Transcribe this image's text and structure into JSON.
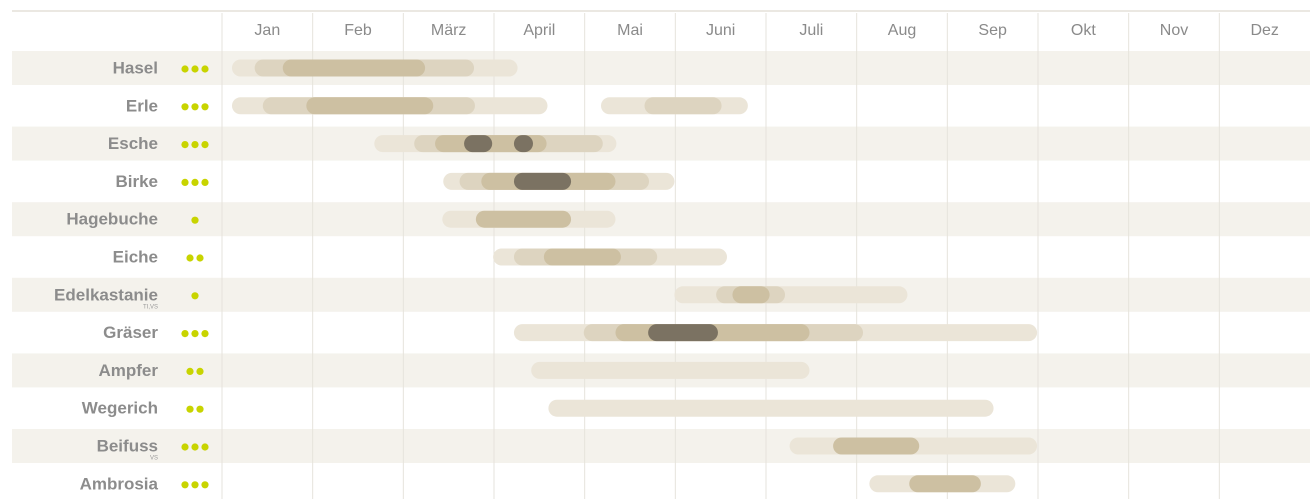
{
  "chart_data": {
    "type": "gantt",
    "categories": [
      "Jan",
      "Feb",
      "März",
      "April",
      "Mai",
      "Juni",
      "Juli",
      "Aug",
      "Sep",
      "Okt",
      "Nov",
      "Dez"
    ],
    "xlim": [
      0,
      12
    ],
    "level_colors": [
      "#ebe5d8",
      "#ddd4c0",
      "#cdc0a2",
      "#7b7262"
    ],
    "dot_color": "#c8d400",
    "series": [
      {
        "name": "Hasel",
        "dots": 3,
        "segments": [
          {
            "start": 0.11,
            "end": 3.26,
            "level": 0
          },
          {
            "start": 0.36,
            "end": 2.78,
            "level": 1
          },
          {
            "start": 0.67,
            "end": 2.24,
            "level": 2
          }
        ]
      },
      {
        "name": "Erle",
        "dots": 3,
        "segments": [
          {
            "start": 0.11,
            "end": 3.59,
            "level": 0
          },
          {
            "start": 0.45,
            "end": 2.79,
            "level": 1
          },
          {
            "start": 0.93,
            "end": 2.33,
            "level": 2
          },
          {
            "start": 4.18,
            "end": 5.8,
            "level": 0
          },
          {
            "start": 4.66,
            "end": 5.51,
            "level": 1
          }
        ]
      },
      {
        "name": "Esche",
        "dots": 3,
        "segments": [
          {
            "start": 1.68,
            "end": 4.35,
            "level": 0
          },
          {
            "start": 2.12,
            "end": 4.2,
            "level": 1
          },
          {
            "start": 2.35,
            "end": 3.58,
            "level": 2
          },
          {
            "start": 2.67,
            "end": 2.98,
            "level": 3
          },
          {
            "start": 3.22,
            "end": 3.43,
            "level": 3
          }
        ]
      },
      {
        "name": "Birke",
        "dots": 3,
        "segments": [
          {
            "start": 2.44,
            "end": 4.99,
            "level": 0
          },
          {
            "start": 2.62,
            "end": 4.71,
            "level": 1
          },
          {
            "start": 2.86,
            "end": 4.34,
            "level": 2
          },
          {
            "start": 3.22,
            "end": 3.85,
            "level": 3
          }
        ]
      },
      {
        "name": "Hagebuche",
        "dots": 1,
        "segments": [
          {
            "start": 2.43,
            "end": 4.34,
            "level": 0
          },
          {
            "start": 2.8,
            "end": 3.85,
            "level": 2
          }
        ]
      },
      {
        "name": "Eiche",
        "dots": 2,
        "segments": [
          {
            "start": 2.99,
            "end": 5.57,
            "level": 0
          },
          {
            "start": 3.22,
            "end": 4.8,
            "level": 1
          },
          {
            "start": 3.55,
            "end": 4.4,
            "level": 2
          }
        ]
      },
      {
        "name": "Edelkastanie",
        "sub": "TI,VS",
        "dots": 1,
        "segments": [
          {
            "start": 4.99,
            "end": 7.56,
            "level": 0
          },
          {
            "start": 5.45,
            "end": 6.21,
            "level": 1
          },
          {
            "start": 5.63,
            "end": 6.04,
            "level": 2
          }
        ]
      },
      {
        "name": "Gräser",
        "dots": 3,
        "segments": [
          {
            "start": 3.22,
            "end": 8.99,
            "level": 0
          },
          {
            "start": 3.99,
            "end": 7.07,
            "level": 1
          },
          {
            "start": 4.34,
            "end": 6.48,
            "level": 2
          },
          {
            "start": 4.7,
            "end": 5.47,
            "level": 3
          }
        ]
      },
      {
        "name": "Ampfer",
        "dots": 2,
        "segments": [
          {
            "start": 3.41,
            "end": 6.48,
            "level": 0
          }
        ]
      },
      {
        "name": "Wegerich",
        "dots": 2,
        "segments": [
          {
            "start": 3.6,
            "end": 8.51,
            "level": 0
          }
        ]
      },
      {
        "name": "Beifuss",
        "sub": "VS",
        "dots": 3,
        "segments": [
          {
            "start": 6.26,
            "end": 8.99,
            "level": 0
          },
          {
            "start": 6.74,
            "end": 7.69,
            "level": 2
          }
        ]
      },
      {
        "name": "Ambrosia",
        "dots": 3,
        "segments": [
          {
            "start": 7.14,
            "end": 8.75,
            "level": 0
          },
          {
            "start": 7.58,
            "end": 8.37,
            "level": 2
          }
        ]
      }
    ]
  }
}
